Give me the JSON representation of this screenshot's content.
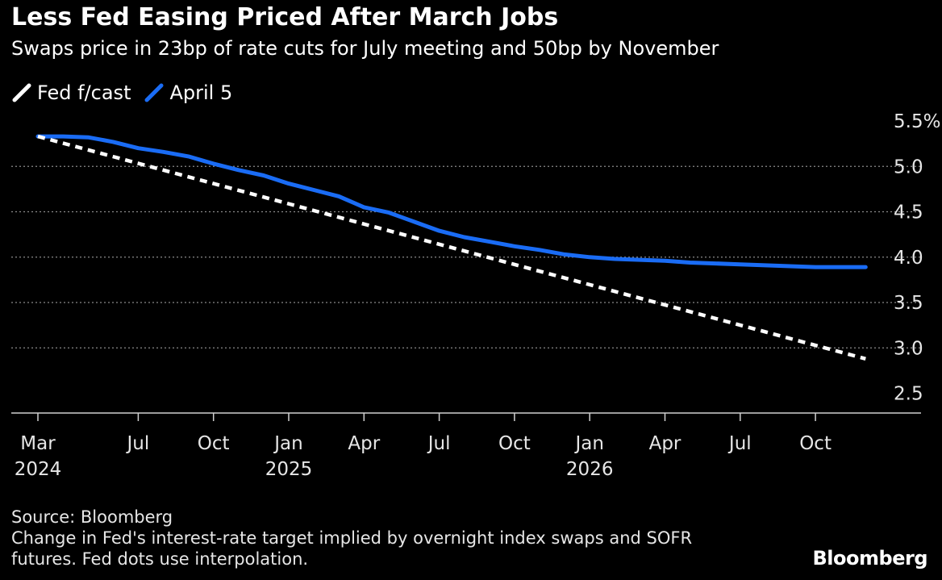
{
  "header": {
    "title": "Less Fed Easing Priced After March Jobs",
    "subtitle": "Swaps price in 23bp of rate cuts for July meeting and 50bp by November"
  },
  "footer": {
    "source": "Source: Bloomberg",
    "note_line1": "Change in Fed's interest-rate target implied by overnight index swaps and SOFR",
    "note_line2": "futures. Fed dots use interpolation.",
    "brand": "Bloomberg"
  },
  "colors": {
    "background": "#000000",
    "fed_forecast": "#ffffff",
    "april5": "#1a6cf5",
    "grid": "#8a8a8a",
    "text": "#ffffff"
  },
  "chart_data": {
    "type": "line",
    "title": "Less Fed Easing Priced After March Jobs",
    "subtitle": "Swaps price in 23bp of rate cuts for July meeting and 50bp by November",
    "xlabel": "",
    "ylabel": "",
    "x_range": [
      "2024-03",
      "2026-12"
    ],
    "ylim": [
      2.5,
      5.5
    ],
    "y_ticks": [
      {
        "value": 5.5,
        "label": "5.5%"
      },
      {
        "value": 5.0,
        "label": "5.0"
      },
      {
        "value": 4.5,
        "label": "4.5"
      },
      {
        "value": 4.0,
        "label": "4.0"
      },
      {
        "value": 3.5,
        "label": "3.5"
      },
      {
        "value": 3.0,
        "label": "3.0"
      },
      {
        "value": 2.5,
        "label": "2.5"
      }
    ],
    "x_ticks": [
      {
        "date": "2024-03",
        "label": "Mar",
        "year": "2024"
      },
      {
        "date": "2024-07",
        "label": "Jul",
        "year": ""
      },
      {
        "date": "2024-10",
        "label": "Oct",
        "year": ""
      },
      {
        "date": "2025-01",
        "label": "Jan",
        "year": "2025"
      },
      {
        "date": "2025-04",
        "label": "Apr",
        "year": ""
      },
      {
        "date": "2025-07",
        "label": "Jul",
        "year": ""
      },
      {
        "date": "2025-10",
        "label": "Oct",
        "year": ""
      },
      {
        "date": "2026-01",
        "label": "Jan",
        "year": "2026"
      },
      {
        "date": "2026-04",
        "label": "Apr",
        "year": ""
      },
      {
        "date": "2026-07",
        "label": "Jul",
        "year": ""
      },
      {
        "date": "2026-10",
        "label": "Oct",
        "year": ""
      }
    ],
    "grid": true,
    "grid_values": [
      5.0,
      4.5,
      4.0,
      3.5,
      3.0
    ],
    "legend_position": "top-left",
    "series": [
      {
        "name": "Fed f/cast",
        "style": "dashed",
        "color": "#ffffff",
        "points": [
          {
            "date": "2024-03",
            "value": 5.33
          },
          {
            "date": "2026-12",
            "value": 2.88
          }
        ]
      },
      {
        "name": "April 5",
        "style": "solid",
        "color": "#1a6cf5",
        "points": [
          {
            "date": "2024-03",
            "value": 5.33
          },
          {
            "date": "2024-04",
            "value": 5.33
          },
          {
            "date": "2024-05",
            "value": 5.32
          },
          {
            "date": "2024-06",
            "value": 5.27
          },
          {
            "date": "2024-07",
            "value": 5.2
          },
          {
            "date": "2024-08",
            "value": 5.16
          },
          {
            "date": "2024-09",
            "value": 5.11
          },
          {
            "date": "2024-10",
            "value": 5.03
          },
          {
            "date": "2024-11",
            "value": 4.96
          },
          {
            "date": "2024-12",
            "value": 4.9
          },
          {
            "date": "2025-01",
            "value": 4.81
          },
          {
            "date": "2025-02",
            "value": 4.74
          },
          {
            "date": "2025-03",
            "value": 4.67
          },
          {
            "date": "2025-04",
            "value": 4.55
          },
          {
            "date": "2025-05",
            "value": 4.49
          },
          {
            "date": "2025-06",
            "value": 4.39
          },
          {
            "date": "2025-07",
            "value": 4.29
          },
          {
            "date": "2025-08",
            "value": 4.22
          },
          {
            "date": "2025-09",
            "value": 4.17
          },
          {
            "date": "2025-10",
            "value": 4.12
          },
          {
            "date": "2025-11",
            "value": 4.08
          },
          {
            "date": "2025-12",
            "value": 4.03
          },
          {
            "date": "2026-01",
            "value": 4.0
          },
          {
            "date": "2026-02",
            "value": 3.98
          },
          {
            "date": "2026-03",
            "value": 3.97
          },
          {
            "date": "2026-04",
            "value": 3.96
          },
          {
            "date": "2026-05",
            "value": 3.94
          },
          {
            "date": "2026-06",
            "value": 3.93
          },
          {
            "date": "2026-07",
            "value": 3.92
          },
          {
            "date": "2026-08",
            "value": 3.91
          },
          {
            "date": "2026-09",
            "value": 3.9
          },
          {
            "date": "2026-10",
            "value": 3.89
          },
          {
            "date": "2026-11",
            "value": 3.89
          },
          {
            "date": "2026-12",
            "value": 3.89
          }
        ]
      }
    ]
  }
}
